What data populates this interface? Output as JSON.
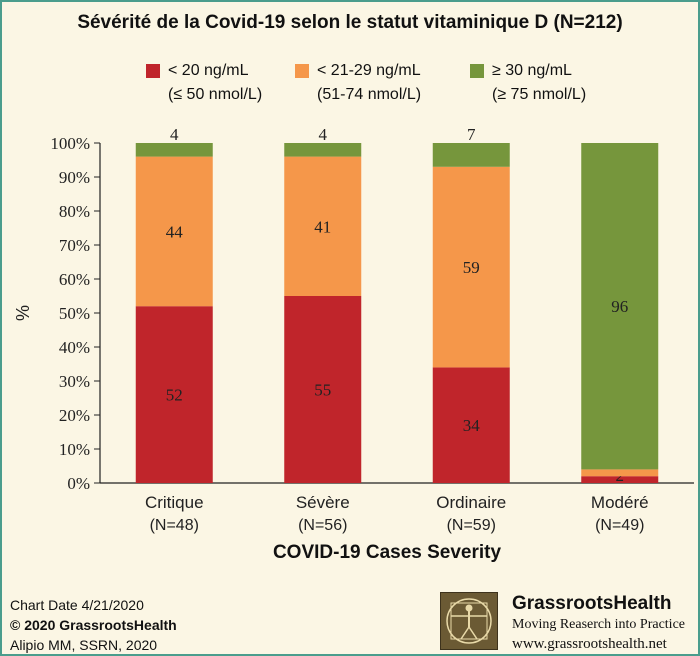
{
  "title": "Sévérité de la Covid-19 selon le statut vitaminique D (N=212)",
  "legend": [
    {
      "line1": "< 20 ng/mL",
      "line2": "(≤ 50 nmol/L)",
      "color": "#c0252b"
    },
    {
      "line1": "< 21-29 ng/mL",
      "line2": "(51-74 nmol/L)",
      "color": "#f5974a"
    },
    {
      "line1": "≥ 30 ng/mL",
      "line2": "(≥ 75 nmol/L)",
      "color": "#76963c"
    }
  ],
  "chart_data": {
    "type": "bar",
    "stacked": true,
    "categories": [
      "Critique",
      "Sévère",
      "Ordinaire",
      "Modéré"
    ],
    "category_sublabels": [
      "(N=48)",
      "(N=56)",
      "(N=59)",
      "(N=49)"
    ],
    "series": [
      {
        "name": "< 20 ng/mL (≤ 50 nmol/L)",
        "color": "#c0252b",
        "values": [
          52,
          55,
          34,
          2
        ]
      },
      {
        "name": "< 21-29 ng/mL (51-74 nmol/L)",
        "color": "#f5974a",
        "values": [
          44,
          41,
          59,
          2
        ]
      },
      {
        "name": "≥ 30 ng/mL (≥ 75 nmol/L)",
        "color": "#76963c",
        "values": [
          4,
          4,
          7,
          96
        ]
      }
    ],
    "data_labels": [
      [
        "52",
        "44",
        "4"
      ],
      [
        "55",
        "41",
        "4"
      ],
      [
        "34",
        "59",
        "7"
      ],
      [
        "2",
        "",
        "96"
      ]
    ],
    "ylabel": "%",
    "xlabel": "COVID-19 Cases Severity",
    "ylim": [
      0,
      100
    ],
    "yticks": [
      "0%",
      "10%",
      "20%",
      "30%",
      "40%",
      "50%",
      "60%",
      "70%",
      "80%",
      "90%",
      "100%"
    ]
  },
  "footer": {
    "date": "Chart Date 4/21/2020",
    "copyright": "© 2020 GrassrootsHealth",
    "source": "Alipio MM, SSRN, 2020"
  },
  "brand": {
    "name": "GrassrootsHealth",
    "tagline": "Moving Reaserch into Practice",
    "url": "www.grassrootshealth.net"
  }
}
